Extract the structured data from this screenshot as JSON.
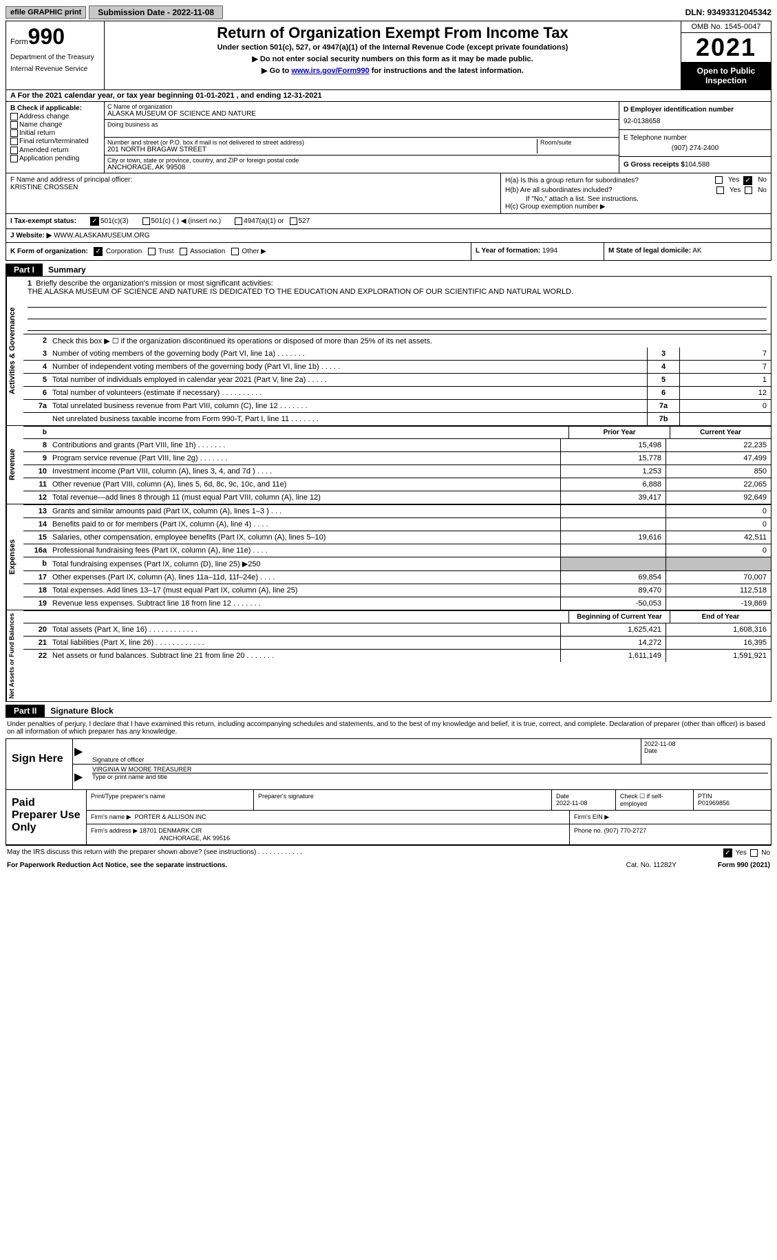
{
  "topbar": {
    "efile": "efile GRAPHIC print",
    "submission": "Submission Date - 2022-11-08",
    "dln": "DLN: 93493312045342"
  },
  "header": {
    "form_word": "Form",
    "form_num": "990",
    "dept": "Department of the Treasury",
    "irs": "Internal Revenue Service",
    "title": "Return of Organization Exempt From Income Tax",
    "subtitle": "Under section 501(c), 527, or 4947(a)(1) of the Internal Revenue Code (except private foundations)",
    "instr1": "▶ Do not enter social security numbers on this form as it may be made public.",
    "instr2_pre": "▶ Go to ",
    "instr2_link": "www.irs.gov/Form990",
    "instr2_post": " for instructions and the latest information.",
    "omb": "OMB No. 1545-0047",
    "year": "2021",
    "open_public": "Open to Public Inspection"
  },
  "line_a": "A For the 2021 calendar year, or tax year beginning 01-01-2021   , and ending 12-31-2021",
  "col_b": {
    "header": "B Check if applicable:",
    "items": [
      "Address change",
      "Name change",
      "Initial return",
      "Final return/terminated",
      "Amended return",
      "Application pending"
    ]
  },
  "col_c": {
    "name_label": "C Name of organization",
    "name": "ALASKA MUSEUM OF SCIENCE AND NATURE",
    "dba_label": "Doing business as",
    "street_label": "Number and street (or P.O. box if mail is not delivered to street address)",
    "street": "201 NORTH BRAGAW STREET",
    "room_label": "Room/suite",
    "city_label": "City or town, state or province, country, and ZIP or foreign postal code",
    "city": "ANCHORAGE, AK  99508"
  },
  "col_d": {
    "ein_label": "D Employer identification number",
    "ein": "92-0138658",
    "phone_label": "E Telephone number",
    "phone": "(907) 274-2400",
    "gross_label": "G Gross receipts $",
    "gross": "104,588"
  },
  "section_f": {
    "label": "F Name and address of principal officer:",
    "name": "KRISTINE CROSSEN"
  },
  "section_h": {
    "ha_label": "H(a)  Is this a group return for subordinates?",
    "hb_label": "H(b)  Are all subordinates included?",
    "hb_note": "If \"No,\" attach a list. See instructions.",
    "hc_label": "H(c)  Group exemption number ▶",
    "yes": "Yes",
    "no": "No"
  },
  "tax_status": {
    "label": "I   Tax-exempt status:",
    "opt1": "501(c)(3)",
    "opt2": "501(c) (  ) ◀ (insert no.)",
    "opt3": "4947(a)(1) or",
    "opt4": "527"
  },
  "website": {
    "label": "J   Website: ▶",
    "value": "WWW.ALASKAMUSEUM.ORG"
  },
  "kl": {
    "k_label": "K Form of organization:",
    "k_corp": "Corporation",
    "k_trust": "Trust",
    "k_assoc": "Association",
    "k_other": "Other ▶",
    "l_label": "L Year of formation:",
    "l_val": "1994",
    "m_label": "M State of legal domicile:",
    "m_val": "AK"
  },
  "part1": {
    "label": "Part I",
    "title": "Summary",
    "q1_label": "1",
    "q1_text": "Briefly describe the organization's mission or most significant activities:",
    "q1_mission": "THE ALASKA MUSEUM OF SCIENCE AND NATURE IS DEDICATED TO THE EDUCATION AND EXPLORATION OF OUR SCIENTIFIC AND NATURAL WORLD.",
    "q2_text": "Check this box ▶ ☐ if the organization discontinued its operations or disposed of more than 25% of its net assets.",
    "activities_label": "Activities & Governance",
    "revenue_label": "Revenue",
    "expenses_label": "Expenses",
    "netassets_label": "Net Assets or Fund Balances",
    "rows_ag": [
      {
        "n": "3",
        "t": "Number of voting members of the governing body (Part VI, line 1a)   .    .    .    .    .    .    .",
        "b": "3",
        "v": "7"
      },
      {
        "n": "4",
        "t": "Number of independent voting members of the governing body (Part VI, line 1b)   .    .    .    .    .",
        "b": "4",
        "v": "7"
      },
      {
        "n": "5",
        "t": "Total number of individuals employed in calendar year 2021 (Part V, line 2a)   .    .    .    .    .",
        "b": "5",
        "v": "1"
      },
      {
        "n": "6",
        "t": "Total number of volunteers (estimate if necessary)    .    .    .    .    .    .    .    .    .    .",
        "b": "6",
        "v": "12"
      },
      {
        "n": "7a",
        "t": "Total unrelated business revenue from Part VIII, column (C), line 12   .    .    .    .    .    .    .",
        "b": "7a",
        "v": "0"
      },
      {
        "n": "",
        "t": "Net unrelated business taxable income from Form 990-T, Part I, line 11   .    .    .    .    .    .    .",
        "b": "7b",
        "v": ""
      }
    ],
    "hdr_lb": "b",
    "hdr_prior": "Prior Year",
    "hdr_curr": "Current Year",
    "rows_rev": [
      {
        "n": "8",
        "t": "Contributions and grants (Part VIII, line 1h)   .    .    .    .    .    .    .",
        "p": "15,498",
        "c": "22,235"
      },
      {
        "n": "9",
        "t": "Program service revenue (Part VIII, line 2g)   .    .    .    .    .    .    .",
        "p": "15,778",
        "c": "47,499"
      },
      {
        "n": "10",
        "t": "Investment income (Part VIII, column (A), lines 3, 4, and 7d )   .    .    .    .",
        "p": "1,253",
        "c": "850"
      },
      {
        "n": "11",
        "t": "Other revenue (Part VIII, column (A), lines 5, 6d, 8c, 9c, 10c, and 11e)",
        "p": "6,888",
        "c": "22,065"
      },
      {
        "n": "12",
        "t": "Total revenue—add lines 8 through 11 (must equal Part VIII, column (A), line 12)",
        "p": "39,417",
        "c": "92,649"
      }
    ],
    "rows_exp": [
      {
        "n": "13",
        "t": "Grants and similar amounts paid (Part IX, column (A), lines 1–3 )   .    .    .",
        "p": "",
        "c": "0"
      },
      {
        "n": "14",
        "t": "Benefits paid to or for members (Part IX, column (A), line 4)   .    .    .    .",
        "p": "",
        "c": "0"
      },
      {
        "n": "15",
        "t": "Salaries, other compensation, employee benefits (Part IX, column (A), lines 5–10)",
        "p": "19,616",
        "c": "42,511"
      },
      {
        "n": "16a",
        "t": "Professional fundraising fees (Part IX, column (A), line 11e)   .    .    .    .",
        "p": "",
        "c": "0"
      },
      {
        "n": "b",
        "t": "Total fundraising expenses (Part IX, column (D), line 25) ▶250",
        "p": "",
        "c": "",
        "shaded": true
      },
      {
        "n": "17",
        "t": "Other expenses (Part IX, column (A), lines 11a–11d, 11f–24e)   .    .    .    .",
        "p": "69,854",
        "c": "70,007"
      },
      {
        "n": "18",
        "t": "Total expenses. Add lines 13–17 (must equal Part IX, column (A), line 25)",
        "p": "89,470",
        "c": "112,518"
      },
      {
        "n": "19",
        "t": "Revenue less expenses. Subtract line 18 from line 12   .    .    .    .    .    .    .",
        "p": "-50,053",
        "c": "-19,869"
      }
    ],
    "hdr_beg": "Beginning of Current Year",
    "hdr_end": "End of Year",
    "rows_na": [
      {
        "n": "20",
        "t": "Total assets (Part X, line 16)   .    .    .    .    .    .    .    .    .    .    .    .",
        "p": "1,625,421",
        "c": "1,608,316"
      },
      {
        "n": "21",
        "t": "Total liabilities (Part X, line 26)   .    .    .    .    .    .    .    .    .    .    .    .",
        "p": "14,272",
        "c": "16,395"
      },
      {
        "n": "22",
        "t": "Net assets or fund balances. Subtract line 21 from line 20   .    .    .    .    .    .    .",
        "p": "1,611,149",
        "c": "1,591,921"
      }
    ]
  },
  "part2": {
    "label": "Part II",
    "title": "Signature Block",
    "declaration": "Under penalties of perjury, I declare that I have examined this return, including accompanying schedules and statements, and to the best of my knowledge and belief, it is true, correct, and complete. Declaration of preparer (other than officer) is based on all information of which preparer has any knowledge.",
    "sign_here": "Sign Here",
    "sig_officer_label": "Signature of officer",
    "sig_date": "2022-11-08",
    "date_label": "Date",
    "officer_name": "VIRGINIA W MOORE TREASURER",
    "type_name_label": "Type or print name and title",
    "paid_prep": "Paid Preparer Use Only",
    "print_name_label": "Print/Type preparer's name",
    "prep_sig_label": "Preparer's signature",
    "prep_date_label": "Date",
    "prep_date": "2022-11-08",
    "check_if_label": "Check ☐ if self-employed",
    "ptin_label": "PTIN",
    "ptin": "P01969856",
    "firm_name_label": "Firm's name    ▶",
    "firm_name": "PORTER & ALLISON INC",
    "firm_ein_label": "Firm's EIN ▶",
    "firm_addr_label": "Firm's address ▶",
    "firm_addr1": "18701 DENMARK CIR",
    "firm_addr2": "ANCHORAGE, AK  99516",
    "phone_label": "Phone no.",
    "phone": "(907) 770-2727"
  },
  "footer": {
    "irs_discuss": "May the IRS discuss this return with the preparer shown above? (see instructions)   .    .    .    .    .    .    .    .    .    .    .    .",
    "yes": "Yes",
    "no": "No",
    "paperwork": "For Paperwork Reduction Act Notice, see the separate instructions.",
    "cat": "Cat. No. 11282Y",
    "form": "Form 990 (2021)"
  }
}
